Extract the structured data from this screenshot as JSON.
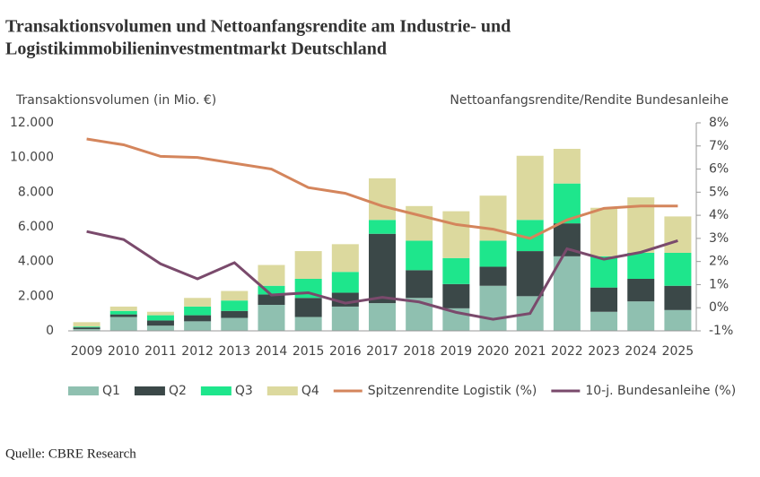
{
  "chart_data": {
    "type": "bar",
    "title": [
      "Transaktionsvolumen und Nettoanfangsrendite am Industrie- und",
      "Logistikimmobilieninvestmentmarkt Deutschland"
    ],
    "y_label": "Transaktionsvolumen (in Mio. €)",
    "y2_label": "Nettoanfangsrendite/Rendite Bundesanleihe",
    "categories": [
      "2009",
      "2010",
      "2011",
      "2012",
      "2013",
      "2014",
      "2015",
      "2016",
      "2017",
      "2018",
      "2019",
      "2020",
      "2021",
      "2022",
      "2023",
      "2024",
      "2025"
    ],
    "series": [
      {
        "name": "Q1",
        "color": "#8fc0b0",
        "values": [
          100,
          800,
          300,
          550,
          750,
          1500,
          800,
          1400,
          1600,
          1900,
          1300,
          2600,
          2000,
          4300,
          1100,
          1700,
          1200
        ]
      },
      {
        "name": "Q2",
        "color": "#3b4848",
        "values": [
          100,
          150,
          300,
          350,
          400,
          600,
          1100,
          800,
          4000,
          1600,
          1400,
          1100,
          2600,
          1900,
          1400,
          1300,
          1400
        ]
      },
      {
        "name": "Q3",
        "color": "#1ee68c",
        "values": [
          50,
          200,
          300,
          500,
          600,
          500,
          1100,
          1200,
          800,
          1700,
          1500,
          1500,
          1800,
          2300,
          1800,
          1500,
          1900
        ]
      },
      {
        "name": "Q4",
        "color": "#dcd99e",
        "values": [
          250,
          250,
          200,
          500,
          550,
          1200,
          1600,
          1600,
          2400,
          2000,
          2700,
          2600,
          3700,
          2000,
          2800,
          3200,
          2100
        ]
      },
      {
        "name": "Spitzenrendite Logistik (%)",
        "color": "#d4855c",
        "type": "line",
        "axis": "y2",
        "values": [
          7.3,
          7.05,
          6.55,
          6.5,
          6.25,
          6.0,
          5.2,
          4.95,
          4.4,
          4.0,
          3.6,
          3.4,
          3.0,
          3.8,
          4.3,
          4.4,
          4.4
        ]
      },
      {
        "name": "10-j. Bundesanleihe (%)",
        "color": "#7a4a6c",
        "type": "line",
        "axis": "y2",
        "values": [
          3.3,
          2.95,
          1.9,
          1.25,
          1.95,
          0.55,
          0.65,
          0.2,
          0.45,
          0.25,
          -0.2,
          -0.5,
          -0.25,
          2.55,
          2.1,
          2.4,
          2.9
        ]
      }
    ],
    "ylim": [
      0,
      12000
    ],
    "yticks": [
      0,
      {
        "value": 2000,
        "label": "2.000"
      },
      {
        "value": 4000,
        "label": "4.000"
      },
      {
        "value": 6000,
        "label": "6.000"
      },
      {
        "value": 8000,
        "label": "8.000"
      },
      {
        "value": 10000,
        "label": "10.000"
      },
      {
        "value": 12000,
        "label": "12.000"
      }
    ],
    "y2lim": [
      -1,
      8
    ],
    "y2ticks": [
      {
        "value": -1,
        "label": "-1%"
      },
      {
        "value": 0,
        "label": "0%"
      },
      {
        "value": 1,
        "label": "1%"
      },
      {
        "value": 2,
        "label": "2%"
      },
      {
        "value": 3,
        "label": "3%"
      },
      {
        "value": 4,
        "label": "4%"
      },
      {
        "value": 5,
        "label": "5%"
      },
      {
        "value": 6,
        "label": "6%"
      },
      {
        "value": 7,
        "label": "7%"
      },
      {
        "value": 8,
        "label": "8%"
      }
    ],
    "grid": false,
    "legend": "bottom",
    "source": "Quelle: CBRE Research"
  }
}
